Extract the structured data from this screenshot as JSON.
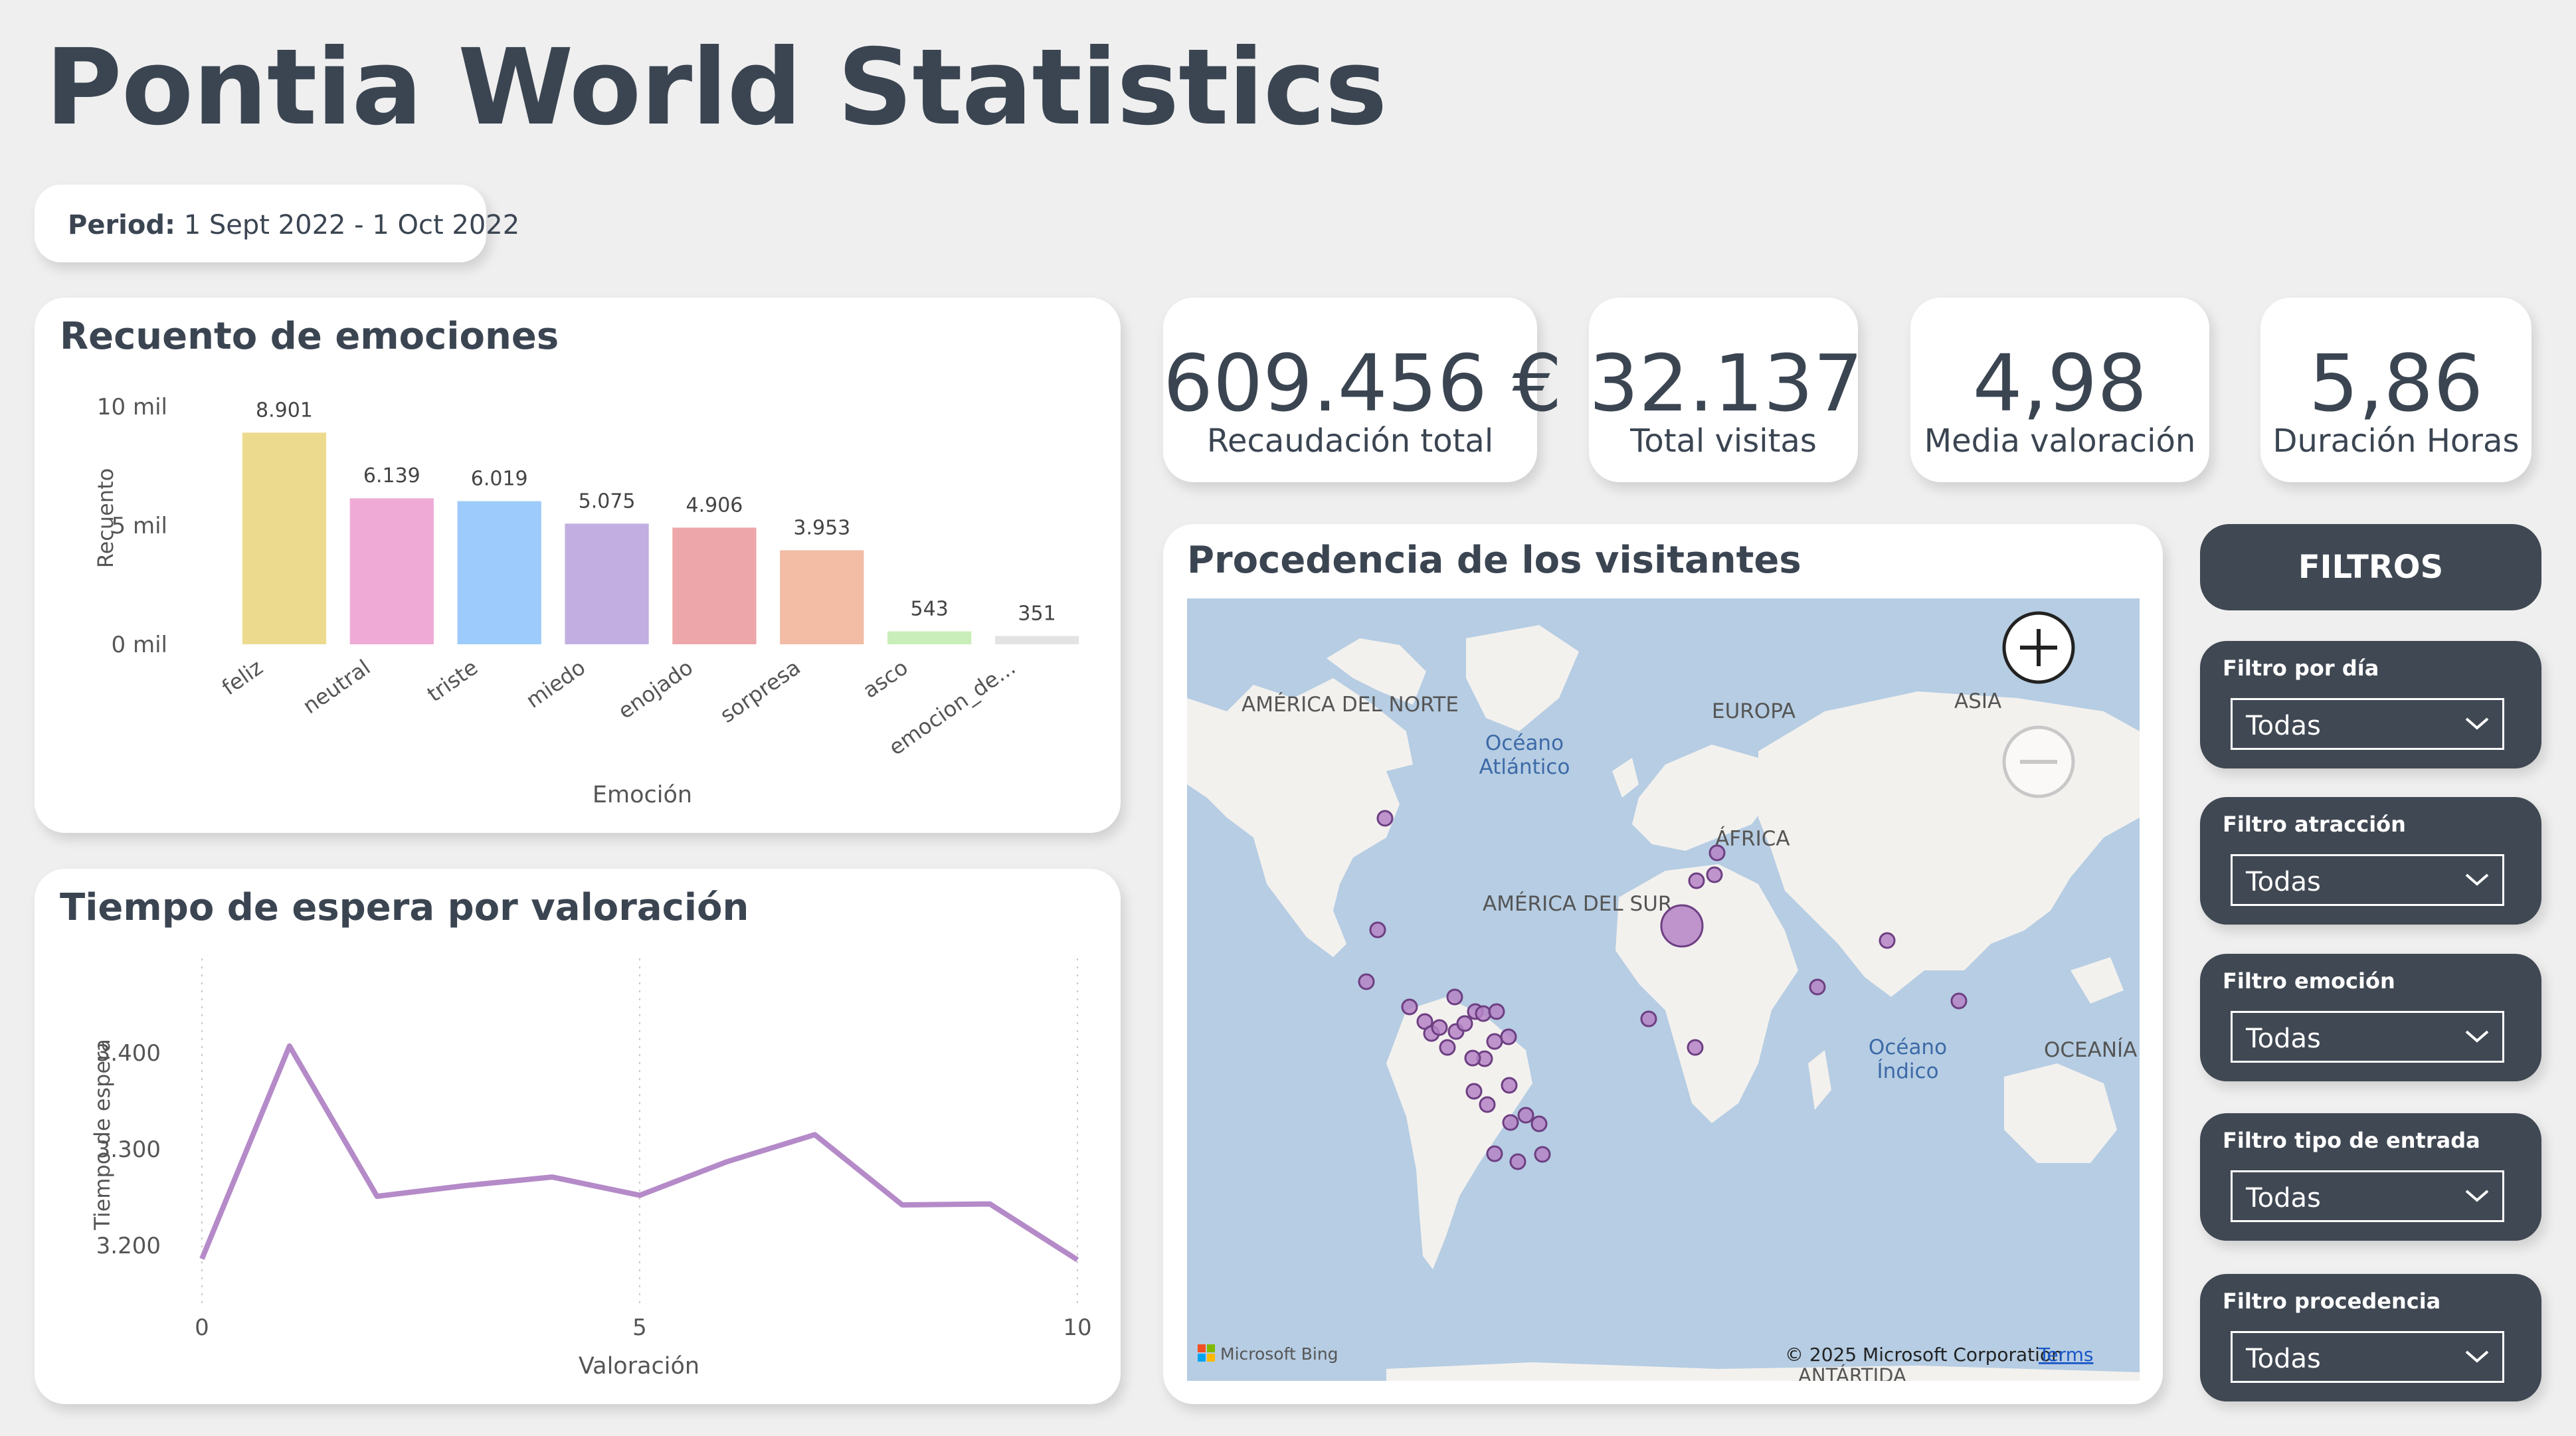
{
  "page": {
    "title": "Pontia World Statistics"
  },
  "period": {
    "label": "Period:",
    "value": "1 Sept 2022 - 1 Oct 2022"
  },
  "emotions_card": {
    "title": "Recuento de emociones"
  },
  "wait_card": {
    "title": "Tiempo de espera por valoración"
  },
  "kpis": [
    {
      "value": "609.456 €",
      "label": "Recaudación total"
    },
    {
      "value": "32.137",
      "label": "Total visitas"
    },
    {
      "value": "4,98",
      "label": "Media valoración"
    },
    {
      "value": "5,86",
      "label": "Duración Horas"
    }
  ],
  "map": {
    "title": "Procedencia de los visitantes",
    "labels": {
      "north_america": "AMÉRICA DEL NORTE",
      "europe": "EUROPA",
      "asia": "ASIA",
      "atlantic_1": "Océano",
      "atlantic_2": "Atlántico",
      "africa": "ÁFRICA",
      "south_america": "AMÉRICA DEL SUR",
      "indian_1": "Océano",
      "indian_2": "Índico",
      "oceania": "OCEANÍA",
      "antarctica": "ANTÁRTIDA"
    },
    "attribution": "Microsoft Bing",
    "copyright": "© 2025 Microsoft Corporation",
    "terms": "Terms",
    "bubble_color": "#b584c6"
  },
  "filters": {
    "header": "FILTROS",
    "items": [
      {
        "label": "Filtro por día",
        "value": "Todas"
      },
      {
        "label": "Filtro atracción",
        "value": "Todas"
      },
      {
        "label": "Filtro emoción",
        "value": "Todas"
      },
      {
        "label": "Filtro tipo de entrada",
        "value": "Todas"
      },
      {
        "label": "Filtro procedencia",
        "value": "Todas"
      }
    ]
  },
  "chart_data": [
    {
      "type": "bar",
      "title": "Recuento de emociones",
      "xlabel": "Emoción",
      "ylabel": "Recuento",
      "ylim": [
        0,
        10000
      ],
      "yticks": [
        {
          "value": 0,
          "label": "0 mil"
        },
        {
          "value": 5000,
          "label": "5 mil"
        },
        {
          "value": 10000,
          "label": "10 mil"
        }
      ],
      "categories": [
        "feliz",
        "neutral",
        "triste",
        "miedo",
        "enojado",
        "sorpresa",
        "asco",
        "emocion_de..."
      ],
      "values": [
        8901,
        6139,
        6019,
        5075,
        4906,
        3953,
        543,
        351
      ],
      "value_labels": [
        "8.901",
        "6.139",
        "6.019",
        "5.075",
        "4.906",
        "3.953",
        "543",
        "351"
      ],
      "colors": [
        "#ecdb8f",
        "#efabd6",
        "#9dcbfb",
        "#c2aee0",
        "#eda7aa",
        "#f2bca5",
        "#c9eeb9",
        "#e3e3e3"
      ],
      "grid": false,
      "legend": "none"
    },
    {
      "type": "line",
      "title": "Tiempo de espera por valoración",
      "xlabel": "Valoración",
      "ylabel": "Tiempo de espera",
      "xlim": [
        0,
        10
      ],
      "ylim": [
        3140,
        3460
      ],
      "xticks": [
        0,
        5,
        10
      ],
      "yticks": [
        {
          "value": 3200,
          "label": "3.200"
        },
        {
          "value": 3300,
          "label": "3.300"
        },
        {
          "value": 3400,
          "label": "3.400"
        }
      ],
      "series": [
        {
          "x": [
            0,
            1,
            2,
            3,
            4,
            5,
            6,
            7,
            8,
            9,
            10
          ],
          "values": [
            3186,
            3407,
            3251,
            3262,
            3271,
            3252,
            3287,
            3315,
            3242,
            3243,
            3185
          ],
          "color": "#b58ac8"
        }
      ],
      "grid": "vertical dotted",
      "legend": "none"
    }
  ]
}
